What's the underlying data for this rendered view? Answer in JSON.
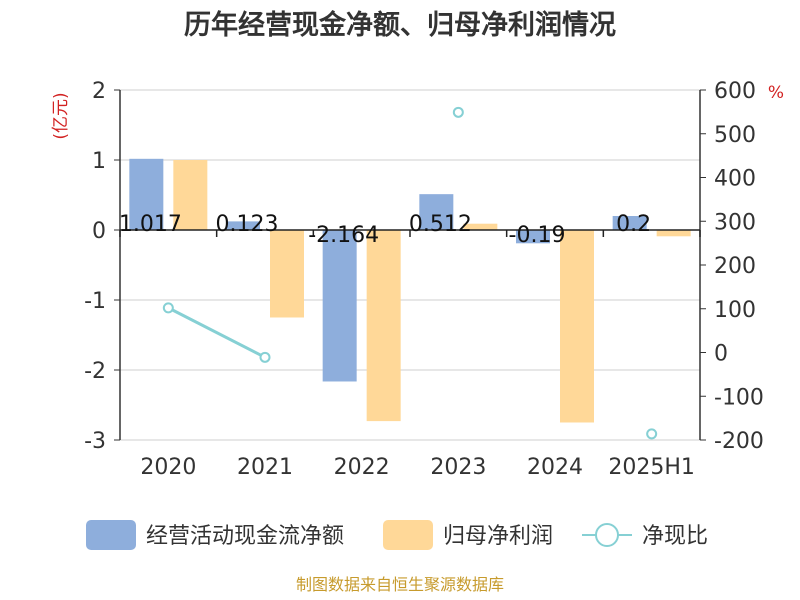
{
  "chart_data": {
    "type": "bar",
    "title": "历年经营现金净额、归母净利润情况",
    "categories": [
      "2020",
      "2021",
      "2022",
      "2023",
      "2024",
      "2025H1"
    ],
    "series": [
      {
        "name": "经营活动现金流净额",
        "values": [
          1.017,
          0.123,
          -2.164,
          0.512,
          -0.19,
          0.2
        ],
        "color": "#8eaedc",
        "axis": "left",
        "kind": "bar"
      },
      {
        "name": "归母净利润",
        "values": [
          1.0,
          -1.25,
          -2.73,
          0.09,
          -2.75,
          -0.09
        ],
        "color": "#ffd898",
        "axis": "left",
        "kind": "bar"
      },
      {
        "name": "净现比",
        "values": [
          102,
          -11,
          null,
          549,
          null,
          -186
        ],
        "color": "#86d0d4",
        "axis": "right",
        "kind": "line"
      }
    ],
    "data_labels": [
      "1.017",
      "0.123",
      "-2.164",
      "0.512",
      "-0.19",
      "0.2"
    ],
    "y_left": {
      "label": "(亿元)",
      "min": -3,
      "max": 2,
      "ticks": [
        "2",
        "1",
        "0",
        "-1",
        "-2",
        "-3"
      ]
    },
    "y_right": {
      "label": "%",
      "min": -200,
      "max": 600,
      "ticks": [
        "600",
        "500",
        "400",
        "300",
        "200",
        "100",
        "0",
        "-100",
        "-200"
      ]
    },
    "grid": true,
    "legend_position": "bottom"
  },
  "source": "制图数据来自恒生聚源数据库"
}
